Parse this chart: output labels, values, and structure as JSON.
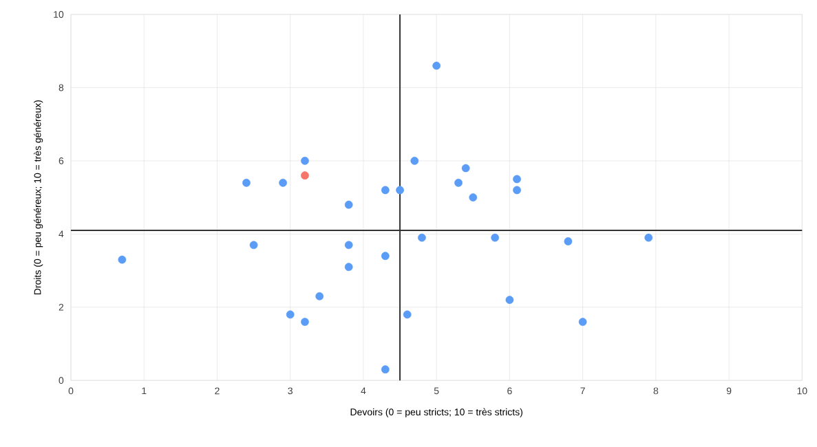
{
  "chart_data": {
    "type": "scatter",
    "xlabel": "Devoirs (0 = peu stricts; 10 = très stricts)",
    "ylabel": "Droits (0 = peu généreux; 10 = très généreux)",
    "xlim": [
      0,
      10
    ],
    "ylim": [
      0,
      10
    ],
    "xticks": [
      0,
      1,
      2,
      3,
      4,
      5,
      6,
      7,
      8,
      9,
      10
    ],
    "yticks": [
      0,
      2,
      4,
      6,
      8,
      10
    ],
    "grid": true,
    "marker": "circle",
    "series": [
      {
        "color": "#5b9cf6",
        "x": [
          0.7,
          2.4,
          2.5,
          2.9,
          3.0,
          3.2,
          3.2,
          3.4,
          3.8,
          3.8,
          3.8,
          4.3,
          4.3,
          4.3,
          4.5,
          4.6,
          4.7,
          4.8,
          5.0,
          5.3,
          5.4,
          5.5,
          5.8,
          6.0,
          6.1,
          6.1,
          6.8,
          7.0,
          7.9
        ],
        "values": [
          3.3,
          5.4,
          3.7,
          5.4,
          1.8,
          6.0,
          1.6,
          2.3,
          4.8,
          3.7,
          3.1,
          5.2,
          3.4,
          0.3,
          5.2,
          1.8,
          6.0,
          3.9,
          8.6,
          5.4,
          5.8,
          5.0,
          3.9,
          2.2,
          5.5,
          5.2,
          3.8,
          1.6,
          3.9
        ]
      },
      {
        "color": "#f4776a",
        "x": [
          3.2
        ],
        "values": [
          5.6
        ]
      }
    ],
    "ref_lines": [
      {
        "axis": "x",
        "value": 4.5,
        "color": "#333333"
      },
      {
        "axis": "y",
        "value": 4.1,
        "color": "#333333"
      }
    ]
  }
}
